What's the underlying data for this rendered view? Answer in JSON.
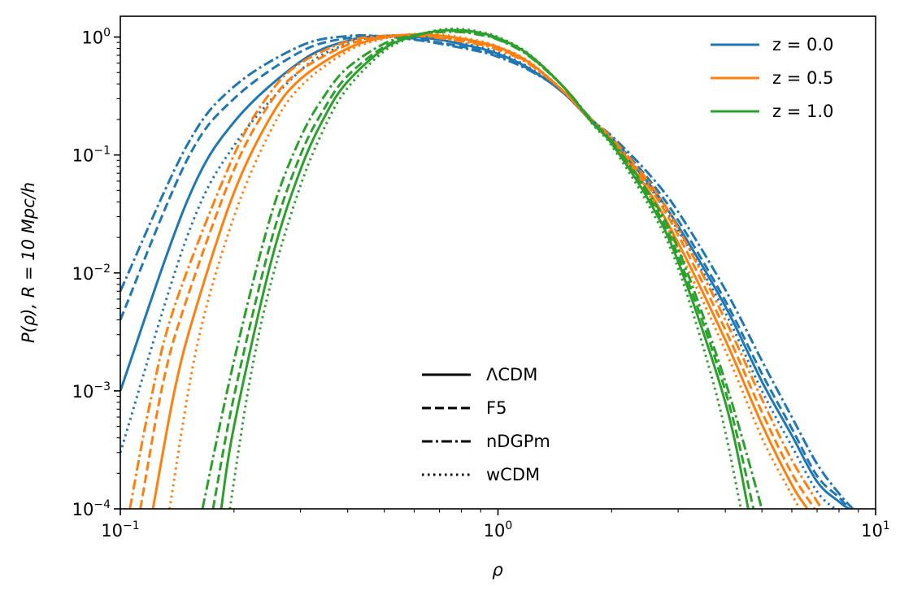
{
  "chart_data": {
    "type": "line",
    "xscale": "log",
    "yscale": "log",
    "xlim": [
      0.1,
      10
    ],
    "ylim": [
      0.0001,
      1.5
    ],
    "xlabel": "ρ",
    "ylabel": "P(ρ), R = 10 Mpc/h",
    "grid": false,
    "xticks": [
      {
        "base": "10",
        "exp": "−1",
        "value": 0.1
      },
      {
        "base": "10",
        "exp": "0",
        "value": 1
      },
      {
        "base": "10",
        "exp": "1",
        "value": 10
      }
    ],
    "yticks": [
      {
        "base": "10",
        "exp": "−4",
        "value": 0.0001
      },
      {
        "base": "10",
        "exp": "−3",
        "value": 0.001
      },
      {
        "base": "10",
        "exp": "−2",
        "value": 0.01
      },
      {
        "base": "10",
        "exp": "−1",
        "value": 0.1
      },
      {
        "base": "10",
        "exp": "0",
        "value": 1
      }
    ],
    "legend_redshift": {
      "placement": "top-right",
      "entries": [
        {
          "label": "z = 0.0",
          "color": "#1f77b4"
        },
        {
          "label": "z = 0.5",
          "color": "#ff7f0e"
        },
        {
          "label": "z = 1.0",
          "color": "#2ca02c"
        }
      ]
    },
    "legend_model": {
      "placement": "lower-center",
      "entries": [
        {
          "label": "ΛCDM",
          "style": "solid"
        },
        {
          "label": "F5",
          "style": "dashed"
        },
        {
          "label": "nDGPm",
          "style": "dashdot"
        },
        {
          "label": "wCDM",
          "style": "dotted"
        }
      ]
    },
    "series": [
      {
        "z": "0.0",
        "model": "ΛCDM",
        "color": "#1f77b4",
        "style": "solid",
        "x": [
          0.1,
          0.15,
          0.2,
          0.3,
          0.4,
          0.5,
          0.6,
          0.7,
          0.8,
          0.9,
          1.0,
          1.2,
          1.5,
          1.8,
          2.0,
          2.5,
          3.0,
          4.0,
          5.0,
          6.0,
          7.0,
          8.0,
          8.5
        ],
        "y": [
          0.001,
          0.04,
          0.19,
          0.62,
          0.93,
          1.02,
          1.0,
          0.95,
          0.87,
          0.8,
          0.72,
          0.55,
          0.33,
          0.18,
          0.13,
          0.058,
          0.025,
          0.0052,
          0.0012,
          0.00042,
          0.00017,
          0.000115,
          0.0001
        ]
      },
      {
        "z": "0.0",
        "model": "F5",
        "color": "#1f77b4",
        "style": "dashed",
        "x": [
          0.1,
          0.15,
          0.2,
          0.3,
          0.4,
          0.5,
          0.6,
          0.7,
          0.8,
          0.9,
          1.0,
          1.2,
          1.5,
          1.8,
          2.0,
          2.5,
          3.0,
          4.0,
          5.0,
          6.0,
          7.0,
          8.0,
          8.5
        ],
        "y": [
          0.004,
          0.09,
          0.3,
          0.75,
          0.98,
          1.02,
          0.97,
          0.9,
          0.83,
          0.77,
          0.7,
          0.54,
          0.34,
          0.19,
          0.14,
          0.063,
          0.028,
          0.0058,
          0.0014,
          0.00048,
          0.00019,
          0.000125,
          0.0001
        ]
      },
      {
        "z": "0.0",
        "model": "nDGPm",
        "color": "#1f77b4",
        "style": "dashdot",
        "x": [
          0.1,
          0.15,
          0.2,
          0.3,
          0.4,
          0.5,
          0.6,
          0.7,
          0.8,
          0.9,
          1.0,
          1.2,
          1.5,
          1.8,
          2.0,
          2.5,
          3.0,
          4.0,
          5.0,
          6.0,
          7.0,
          8.0,
          8.7
        ],
        "y": [
          0.007,
          0.12,
          0.38,
          0.84,
          1.02,
          1.01,
          0.95,
          0.88,
          0.81,
          0.75,
          0.68,
          0.53,
          0.34,
          0.19,
          0.145,
          0.07,
          0.033,
          0.0072,
          0.0018,
          0.0006,
          0.00024,
          0.000135,
          0.0001
        ]
      },
      {
        "z": "0.0",
        "model": "wCDM",
        "color": "#1f77b4",
        "style": "dotted",
        "x": [
          0.1,
          0.15,
          0.2,
          0.3,
          0.4,
          0.5,
          0.6,
          0.7,
          0.8,
          0.9,
          1.0,
          1.2,
          1.5,
          1.8,
          2.0,
          2.5,
          3.0,
          4.0,
          5.0,
          6.0,
          7.0,
          7.8
        ],
        "y": [
          0.0003,
          0.02,
          0.12,
          0.52,
          0.88,
          1.02,
          1.02,
          0.97,
          0.89,
          0.82,
          0.74,
          0.56,
          0.33,
          0.18,
          0.13,
          0.055,
          0.023,
          0.0046,
          0.001,
          0.00034,
          0.00014,
          0.0001
        ]
      },
      {
        "z": "0.5",
        "model": "ΛCDM",
        "color": "#ff7f0e",
        "style": "solid",
        "x": [
          0.122,
          0.14,
          0.16,
          0.2,
          0.25,
          0.3,
          0.4,
          0.5,
          0.6,
          0.7,
          0.8,
          0.9,
          1.0,
          1.2,
          1.5,
          1.8,
          2.0,
          2.5,
          3.0,
          4.0,
          5.0,
          6.0,
          6.6
        ],
        "y": [
          0.0001,
          0.0011,
          0.0055,
          0.048,
          0.21,
          0.44,
          0.8,
          0.99,
          1.05,
          1.03,
          0.97,
          0.9,
          0.82,
          0.62,
          0.34,
          0.18,
          0.13,
          0.05,
          0.018,
          0.0027,
          0.00052,
          0.00016,
          0.0001
        ]
      },
      {
        "z": "0.5",
        "model": "F5",
        "color": "#ff7f0e",
        "style": "dashed",
        "x": [
          0.113,
          0.13,
          0.15,
          0.2,
          0.25,
          0.3,
          0.4,
          0.5,
          0.6,
          0.7,
          0.8,
          0.9,
          1.0,
          1.2,
          1.5,
          1.8,
          2.0,
          2.5,
          3.0,
          4.0,
          5.0,
          6.0,
          6.9
        ],
        "y": [
          0.0001,
          0.0012,
          0.006,
          0.075,
          0.28,
          0.52,
          0.86,
          1.01,
          1.04,
          1.0,
          0.94,
          0.88,
          0.8,
          0.61,
          0.34,
          0.185,
          0.135,
          0.055,
          0.021,
          0.0033,
          0.00066,
          0.0002,
          0.0001
        ]
      },
      {
        "z": "0.5",
        "model": "nDGPm",
        "color": "#ff7f0e",
        "style": "dashdot",
        "x": [
          0.106,
          0.12,
          0.14,
          0.2,
          0.25,
          0.3,
          0.4,
          0.5,
          0.6,
          0.7,
          0.8,
          0.9,
          1.0,
          1.2,
          1.5,
          1.8,
          2.0,
          2.5,
          3.0,
          4.0,
          5.0,
          6.0,
          7.2
        ],
        "y": [
          0.0001,
          0.0008,
          0.0055,
          0.1,
          0.34,
          0.6,
          0.92,
          1.02,
          1.03,
          0.98,
          0.92,
          0.86,
          0.78,
          0.6,
          0.34,
          0.19,
          0.14,
          0.06,
          0.024,
          0.004,
          0.00085,
          0.00026,
          0.0001
        ]
      },
      {
        "z": "0.5",
        "model": "wCDM",
        "color": "#ff7f0e",
        "style": "dotted",
        "x": [
          0.135,
          0.16,
          0.2,
          0.25,
          0.3,
          0.4,
          0.5,
          0.6,
          0.7,
          0.8,
          0.9,
          1.0,
          1.2,
          1.5,
          1.8,
          2.0,
          2.5,
          3.0,
          4.0,
          5.0,
          5.8,
          6.3
        ],
        "y": [
          0.0001,
          0.0025,
          0.03,
          0.16,
          0.38,
          0.76,
          0.97,
          1.06,
          1.05,
          0.99,
          0.92,
          0.83,
          0.63,
          0.34,
          0.18,
          0.13,
          0.047,
          0.016,
          0.0022,
          0.0004,
          0.00016,
          0.0001
        ]
      },
      {
        "z": "1.0",
        "model": "ΛCDM",
        "color": "#2ca02c",
        "style": "solid",
        "x": [
          0.185,
          0.2,
          0.25,
          0.3,
          0.35,
          0.4,
          0.5,
          0.6,
          0.7,
          0.8,
          0.9,
          1.0,
          1.2,
          1.5,
          1.8,
          2.0,
          2.5,
          3.0,
          4.0,
          4.6
        ],
        "y": [
          0.0001,
          0.0005,
          0.012,
          0.075,
          0.22,
          0.42,
          0.8,
          1.02,
          1.13,
          1.14,
          1.08,
          0.98,
          0.72,
          0.37,
          0.18,
          0.125,
          0.042,
          0.0125,
          0.0008,
          0.0001
        ]
      },
      {
        "z": "1.0",
        "model": "F5",
        "color": "#2ca02c",
        "style": "dashed",
        "x": [
          0.176,
          0.2,
          0.25,
          0.3,
          0.35,
          0.4,
          0.5,
          0.6,
          0.7,
          0.8,
          0.9,
          1.0,
          1.2,
          1.5,
          1.8,
          2.0,
          2.5,
          3.0,
          4.0,
          4.75
        ],
        "y": [
          0.0001,
          0.0009,
          0.018,
          0.1,
          0.26,
          0.47,
          0.83,
          1.03,
          1.12,
          1.12,
          1.06,
          0.96,
          0.71,
          0.37,
          0.18,
          0.128,
          0.045,
          0.014,
          0.001,
          0.0001
        ]
      },
      {
        "z": "1.0",
        "model": "nDGPm",
        "color": "#2ca02c",
        "style": "dashdot",
        "x": [
          0.165,
          0.2,
          0.25,
          0.3,
          0.35,
          0.4,
          0.5,
          0.6,
          0.7,
          0.8,
          0.9,
          1.0,
          1.2,
          1.5,
          1.8,
          2.0,
          2.5,
          3.0,
          4.0,
          5.0
        ],
        "y": [
          0.0001,
          0.0018,
          0.03,
          0.14,
          0.33,
          0.55,
          0.88,
          1.04,
          1.1,
          1.1,
          1.04,
          0.95,
          0.7,
          0.37,
          0.185,
          0.132,
          0.048,
          0.016,
          0.0012,
          0.0001
        ]
      },
      {
        "z": "1.0",
        "model": "wCDM",
        "color": "#2ca02c",
        "style": "dotted",
        "x": [
          0.195,
          0.22,
          0.25,
          0.3,
          0.35,
          0.4,
          0.5,
          0.6,
          0.7,
          0.8,
          0.9,
          1.0,
          1.2,
          1.5,
          1.8,
          2.0,
          2.5,
          3.0,
          3.8,
          4.4
        ],
        "y": [
          0.0001,
          0.0012,
          0.008,
          0.055,
          0.18,
          0.37,
          0.76,
          1.01,
          1.15,
          1.17,
          1.1,
          1.0,
          0.73,
          0.37,
          0.175,
          0.12,
          0.038,
          0.011,
          0.0009,
          0.0001
        ]
      }
    ]
  }
}
